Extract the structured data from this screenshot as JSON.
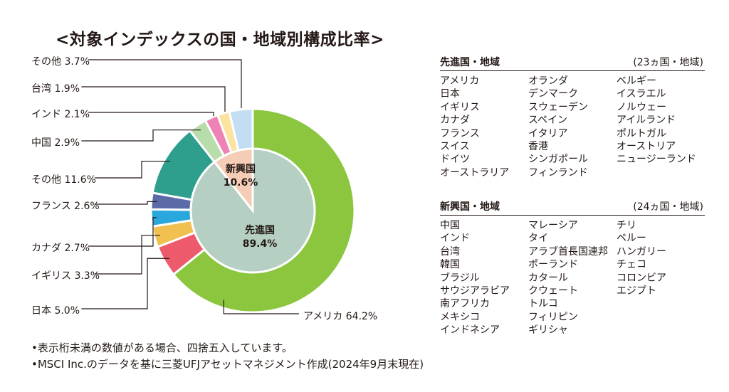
{
  "title": "<対象インデックスの国・地域別構成比率>",
  "chart_data": {
    "type": "pie",
    "inner": [
      {
        "name": "先進国",
        "value": "89.4%",
        "v": 89.4,
        "color": "#b5d0c3"
      },
      {
        "name": "新興国",
        "value": "10.6%",
        "v": 10.6,
        "color": "#f5cdb6"
      }
    ],
    "outer": [
      {
        "label": "アメリカ 64.2%",
        "v": 64.2,
        "color": "#8cc63f"
      },
      {
        "label": "日本 5.0%",
        "v": 5.0,
        "color": "#ed5a6b"
      },
      {
        "label": "イギリス 3.3%",
        "v": 3.3,
        "color": "#f0c050"
      },
      {
        "label": "カナダ 2.7%",
        "v": 2.7,
        "color": "#2aa8dd"
      },
      {
        "label": "フランス 2.6%",
        "v": 2.6,
        "color": "#5a6ba8"
      },
      {
        "label": "その他 11.6%",
        "v": 11.6,
        "color": "#2e9f8c"
      },
      {
        "label": "中国 2.9%",
        "v": 2.9,
        "color": "#b8dcaa"
      },
      {
        "label": "インド 2.1%",
        "v": 2.1,
        "color": "#ee82b5"
      },
      {
        "label": "台湾 1.9%",
        "v": 1.9,
        "color": "#fde3a0"
      },
      {
        "label": "その他 3.7%",
        "v": 3.7,
        "color": "#c3ddf2"
      }
    ]
  },
  "developed": {
    "heading": "先進国・地域",
    "count": "(23ヵ国・地域)",
    "columns": [
      [
        "アメリカ",
        "日本",
        "イギリス",
        "カナダ",
        "フランス",
        "スイス",
        "ドイツ",
        "オーストラリア"
      ],
      [
        "オランダ",
        "デンマーク",
        "スウェーデン",
        "スペイン",
        "イタリア",
        "香港",
        "シンガポール",
        "フィンランド"
      ],
      [
        "ベルギー",
        "イスラエル",
        "ノルウェー",
        "アイルランド",
        "ポルトガル",
        "オーストリア",
        "ニュージーランド"
      ]
    ]
  },
  "emerging": {
    "heading": "新興国・地域",
    "count": "(24ヵ国・地域)",
    "columns": [
      [
        "中国",
        "インド",
        "台湾",
        "韓国",
        "ブラジル",
        "サウジアラビア",
        "南アフリカ",
        "メキシコ",
        "インドネシア"
      ],
      [
        "マレーシア",
        "タイ",
        "アラブ首長国連邦",
        "ポーランド",
        "カタール",
        "クウェート",
        "トルコ",
        "フィリピン",
        "ギリシャ"
      ],
      [
        "チリ",
        "ペルー",
        "ハンガリー",
        "チェコ",
        "コロンビア",
        "エジプト"
      ]
    ]
  },
  "notes": [
    "•表示桁未満の数値がある場合、四捨五入しています。",
    "•MSCI Inc.のデータを基に三菱UFJアセットマネジメント作成(2024年9月末現在)"
  ]
}
